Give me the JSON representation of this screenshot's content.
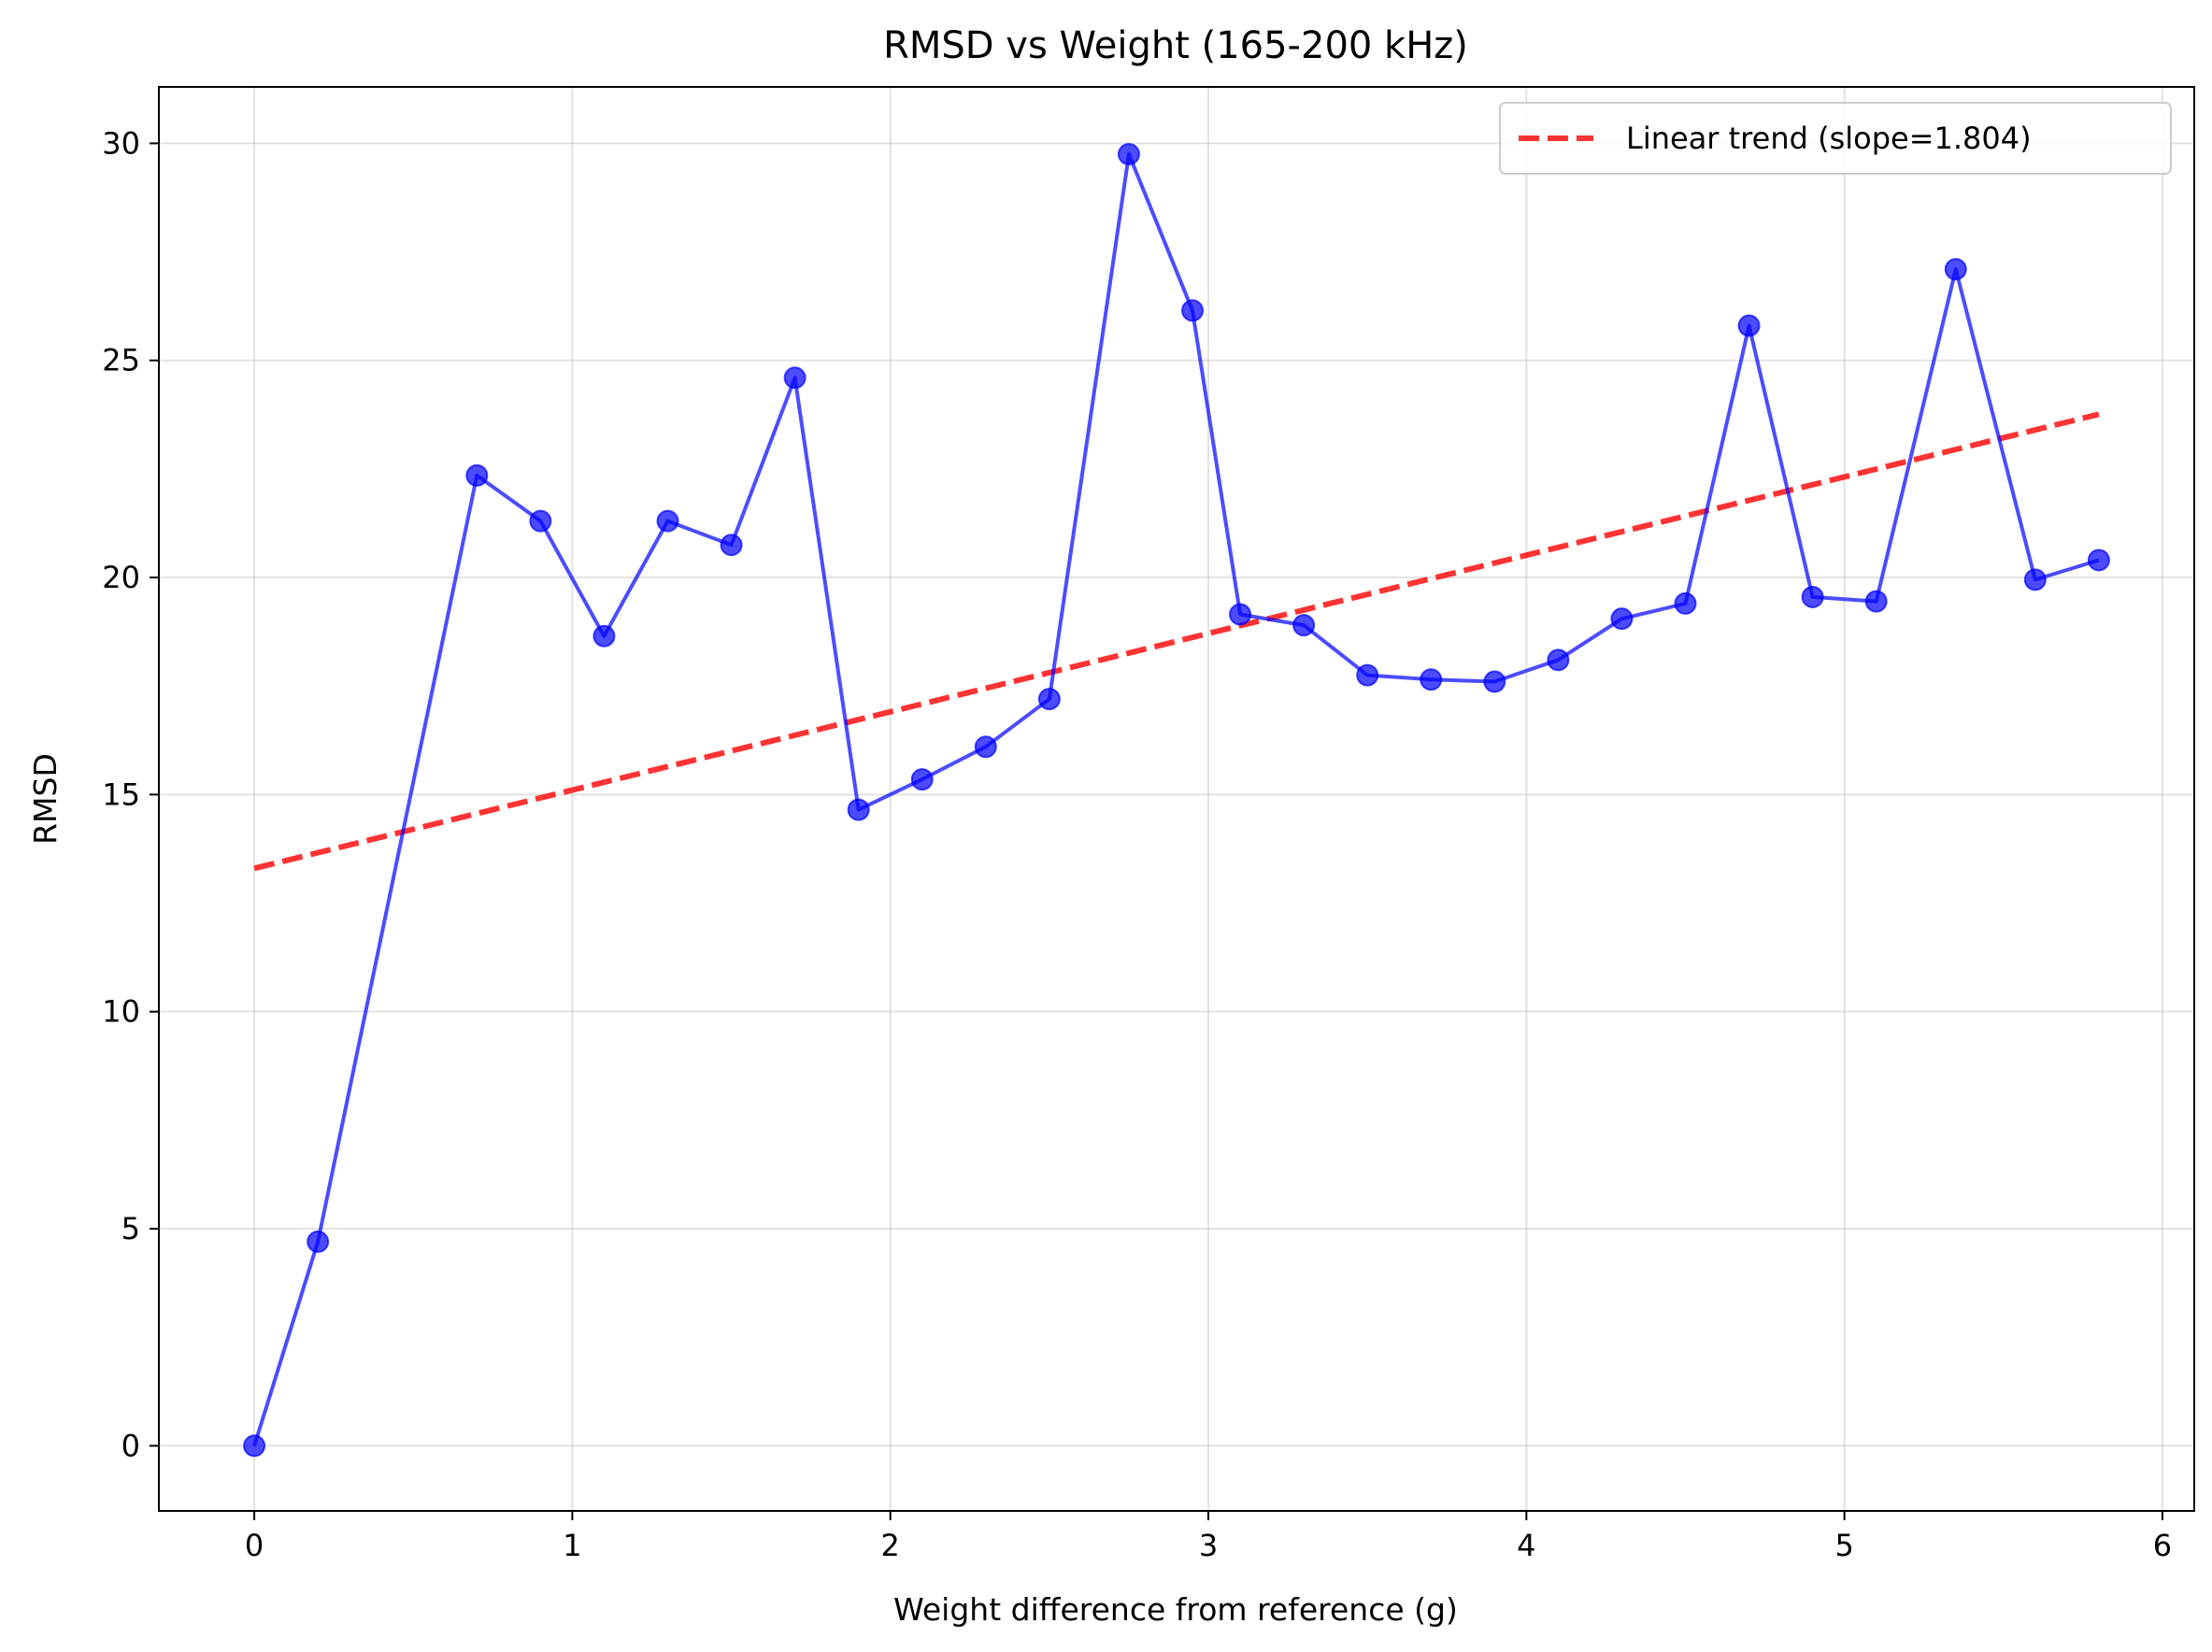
{
  "chart_data": {
    "type": "line",
    "title": "RMSD vs Weight (165-200 kHz)",
    "xlabel": "Weight difference from reference (g)",
    "ylabel": "RMSD",
    "xlim": [
      -0.3,
      6.1
    ],
    "ylim": [
      -1.5,
      31.3
    ],
    "x_ticks": [
      "0",
      "1",
      "2",
      "3",
      "4",
      "5",
      "6"
    ],
    "y_ticks": [
      "0",
      "5",
      "10",
      "15",
      "20",
      "25",
      "30"
    ],
    "grid": true,
    "legend_position": "top-right",
    "colors": {
      "series": "#0000ff",
      "trend": "#ff0000"
    },
    "series": [
      {
        "x": [
          0.0,
          0.2,
          0.7,
          0.9,
          1.1,
          1.3,
          1.5,
          1.7,
          1.9,
          2.1,
          2.3,
          2.5,
          2.75,
          2.95,
          3.1,
          3.3,
          3.5,
          3.7,
          3.9,
          4.1,
          4.3,
          4.5,
          4.7,
          4.9,
          5.1,
          5.35,
          5.6,
          5.8
        ],
        "values": [
          0.0,
          4.7,
          22.35,
          21.3,
          18.65,
          21.3,
          20.75,
          24.6,
          14.65,
          15.35,
          16.1,
          17.2,
          29.75,
          26.15,
          19.15,
          18.9,
          17.75,
          17.65,
          17.6,
          18.1,
          19.05,
          19.4,
          25.8,
          19.55,
          19.45,
          27.1,
          19.95,
          20.4
        ]
      }
    ],
    "trend": {
      "name": "Linear trend (slope=1.804)",
      "x": [
        0.0,
        5.8
      ],
      "values": [
        13.3,
        23.76
      ]
    }
  }
}
